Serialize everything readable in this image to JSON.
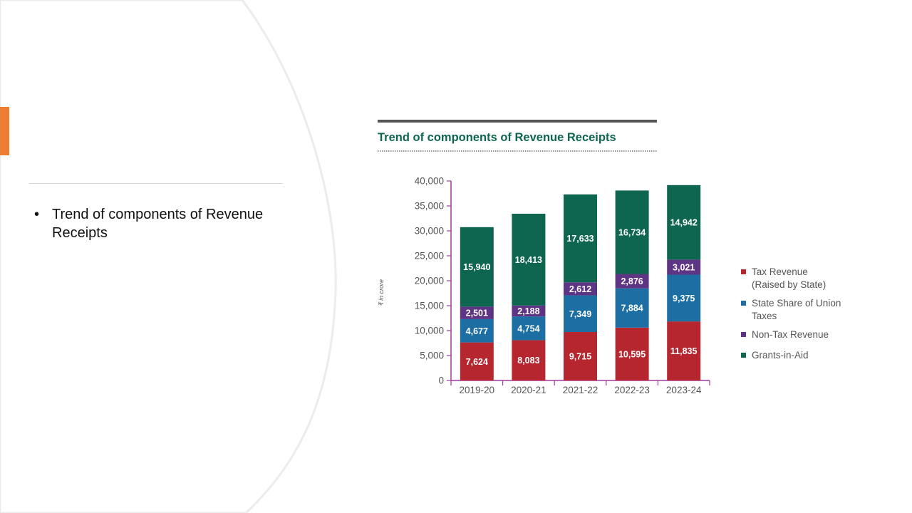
{
  "slide": {
    "accent_color": "#ED7D31",
    "bullets": [
      "Trend of components of Revenue Receipts"
    ]
  },
  "chart_data": {
    "type": "bar",
    "stacked": true,
    "title": "Trend of components of Revenue Receipts",
    "ylabel": "₹ in crore",
    "xlabel": "",
    "ylim": [
      0,
      40000
    ],
    "yticks": [
      0,
      5000,
      10000,
      15000,
      20000,
      25000,
      30000,
      35000,
      40000
    ],
    "ytick_labels": [
      "0",
      "5,000",
      "10,000",
      "15,000",
      "20,000",
      "25,000",
      "30,000",
      "35,000",
      "40,000"
    ],
    "grid": false,
    "legend_position": "right",
    "categories": [
      "2019-20",
      "2020-21",
      "2021-22",
      "2022-23",
      "2023-24"
    ],
    "series": [
      {
        "name": "Tax Revenue (Raised by State)",
        "legend_lines": [
          "Tax Revenue",
          "(Raised by State)"
        ],
        "color": "#B5262E",
        "values": [
          7624,
          8083,
          9715,
          10595,
          11835
        ],
        "labels": [
          "7,624",
          "8,083",
          "9,715",
          "10,595",
          "11,835"
        ]
      },
      {
        "name": "State Share of Union Taxes",
        "legend_lines": [
          "State Share of Union",
          "Taxes"
        ],
        "color": "#1D6FA3",
        "values": [
          4677,
          4754,
          7349,
          7884,
          9375
        ],
        "labels": [
          "4,677",
          "4,754",
          "7,349",
          "7,884",
          "9,375"
        ]
      },
      {
        "name": "Non-Tax Revenue",
        "legend_lines": [
          "Non-Tax Revenue"
        ],
        "color": "#5E3484",
        "values": [
          2501,
          2188,
          2612,
          2876,
          3021
        ],
        "labels": [
          "2,501",
          "2,188",
          "2,612",
          "2,876",
          "3,021"
        ]
      },
      {
        "name": "Grants-in-Aid",
        "legend_lines": [
          "Grants-in-Aid"
        ],
        "color": "#0E6650",
        "values": [
          15940,
          18413,
          17633,
          16734,
          14942
        ],
        "labels": [
          "15,940",
          "18,413",
          "17,633",
          "16,734",
          "14,942"
        ]
      }
    ],
    "colors": {
      "title": "#0E6650",
      "axis": "#A43A9E",
      "label_text": "#555555",
      "header_rule": "#555555"
    }
  }
}
